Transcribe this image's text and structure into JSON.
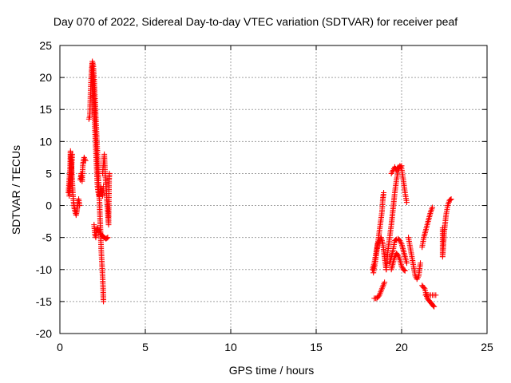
{
  "chart_data": {
    "type": "scatter",
    "title": "Day 070 of 2022, Sidereal Day-to-day VTEC variation (SDTVAR) for receiver peaf",
    "xlabel": "GPS time / hours",
    "ylabel": "SDTVAR / TECUs",
    "xlim": [
      0,
      25
    ],
    "ylim": [
      -20,
      25
    ],
    "xticks": [
      0,
      5,
      10,
      15,
      20,
      25
    ],
    "yticks": [
      -20,
      -15,
      -10,
      -5,
      0,
      5,
      10,
      15,
      20,
      25
    ],
    "grid": true,
    "marker": "+",
    "color": "#ff0000",
    "series": [
      {
        "name": "SDTVAR",
        "segments": [
          [
            [
              0.5,
              2.0
            ],
            [
              0.55,
              4.0
            ],
            [
              0.6,
              6.0
            ],
            [
              0.62,
              8.5
            ],
            [
              0.65,
              7.5
            ],
            [
              0.68,
              6.0
            ],
            [
              0.72,
              4.0
            ],
            [
              0.76,
              2.0
            ],
            [
              0.8,
              0.5
            ],
            [
              0.85,
              -0.5
            ],
            [
              0.9,
              -1.0
            ],
            [
              0.95,
              -1.5
            ],
            [
              1.0,
              -0.8
            ],
            [
              1.05,
              0.5
            ],
            [
              1.1,
              1.0
            ],
            [
              1.15,
              0.0
            ]
          ],
          [
            [
              0.55,
              1.5
            ],
            [
              0.6,
              3.0
            ],
            [
              0.66,
              5.0
            ],
            [
              0.7,
              7.0
            ],
            [
              0.72,
              8.0
            ]
          ],
          [
            [
              1.2,
              4.0
            ],
            [
              1.25,
              5.0
            ],
            [
              1.3,
              3.8
            ],
            [
              1.35,
              6.5
            ],
            [
              1.42,
              7.5
            ],
            [
              1.5,
              7.0
            ]
          ],
          [
            [
              1.7,
              13.5
            ],
            [
              1.75,
              14.0
            ],
            [
              1.8,
              18.0
            ],
            [
              1.85,
              21.0
            ],
            [
              1.9,
              22.5
            ],
            [
              1.95,
              22.0
            ],
            [
              2.0,
              20.0
            ],
            [
              2.05,
              17.0
            ],
            [
              2.1,
              14.0
            ],
            [
              2.15,
              11.0
            ],
            [
              2.2,
              8.0
            ],
            [
              2.25,
              5.0
            ],
            [
              2.28,
              2.5
            ],
            [
              2.32,
              0.5
            ],
            [
              2.35,
              -2.0
            ],
            [
              2.38,
              -4.0
            ],
            [
              2.42,
              -7.0
            ],
            [
              2.46,
              -9.0
            ],
            [
              2.5,
              -11.0
            ],
            [
              2.53,
              -13.0
            ],
            [
              2.55,
              -15.0
            ]
          ],
          [
            [
              1.9,
              22.0
            ],
            [
              1.95,
              19.0
            ],
            [
              2.0,
              16.0
            ],
            [
              2.05,
              12.0
            ],
            [
              2.1,
              9.0
            ],
            [
              2.15,
              6.0
            ],
            [
              2.2,
              3.0
            ],
            [
              2.25,
              2.0
            ],
            [
              2.3,
              1.5
            ],
            [
              2.35,
              2.0
            ],
            [
              2.4,
              2.8
            ],
            [
              2.45,
              2.0
            ],
            [
              2.5,
              1.5
            ],
            [
              2.55,
              3.0
            ]
          ],
          [
            [
              2.0,
              -3.0
            ],
            [
              2.05,
              -4.5
            ],
            [
              2.1,
              -5.0
            ],
            [
              2.15,
              -4.0
            ],
            [
              2.2,
              -3.5
            ],
            [
              2.25,
              -4.0
            ],
            [
              2.3,
              -3.8
            ],
            [
              2.4,
              -4.5
            ],
            [
              2.5,
              -4.8
            ],
            [
              2.6,
              -5.0
            ],
            [
              2.7,
              -5.2
            ],
            [
              2.8,
              -5.0
            ]
          ],
          [
            [
              2.5,
              5.0
            ],
            [
              2.55,
              6.5
            ],
            [
              2.6,
              8.0
            ],
            [
              2.65,
              5.0
            ],
            [
              2.7,
              3.0
            ],
            [
              2.75,
              1.0
            ],
            [
              2.8,
              -1.0
            ],
            [
              2.85,
              -3.0
            ],
            [
              2.88,
              4.0
            ],
            [
              2.9,
              5.0
            ]
          ],
          [
            [
              18.3,
              -10.0
            ],
            [
              18.4,
              -9.0
            ],
            [
              18.5,
              -7.5
            ],
            [
              18.6,
              -6.0
            ],
            [
              18.7,
              -5.5
            ],
            [
              18.8,
              -5.0
            ],
            [
              18.9,
              -6.0
            ],
            [
              19.0,
              -8.0
            ],
            [
              19.1,
              -10.0
            ]
          ],
          [
            [
              18.35,
              -10.5
            ],
            [
              18.45,
              -9.0
            ],
            [
              18.55,
              -7.0
            ],
            [
              18.65,
              -5.0
            ],
            [
              18.75,
              -3.0
            ],
            [
              18.85,
              -1.0
            ],
            [
              18.9,
              1.0
            ],
            [
              18.95,
              2.0
            ]
          ],
          [
            [
              18.4,
              -14.5
            ],
            [
              18.55,
              -14.5
            ],
            [
              18.7,
              -14.0
            ],
            [
              18.85,
              -13.0
            ],
            [
              19.0,
              -12.0
            ]
          ],
          [
            [
              19.1,
              -10.0
            ],
            [
              19.2,
              -7.0
            ],
            [
              19.3,
              -5.0
            ],
            [
              19.4,
              -3.0
            ],
            [
              19.5,
              -0.5
            ],
            [
              19.6,
              2.0
            ],
            [
              19.7,
              4.0
            ],
            [
              19.8,
              5.5
            ],
            [
              19.9,
              6.2
            ],
            [
              20.0,
              5.8
            ],
            [
              20.1,
              4.0
            ],
            [
              20.2,
              2.0
            ],
            [
              20.3,
              0.5
            ]
          ],
          [
            [
              19.4,
              5.0
            ],
            [
              19.5,
              5.5
            ],
            [
              19.6,
              6.0
            ],
            [
              19.7,
              5.5
            ],
            [
              19.8,
              6.0
            ],
            [
              20.0,
              6.2
            ]
          ],
          [
            [
              19.3,
              -9.0
            ],
            [
              19.4,
              -8.0
            ],
            [
              19.5,
              -7.0
            ],
            [
              19.6,
              -5.5
            ],
            [
              19.7,
              -5.3
            ],
            [
              19.8,
              -5.2
            ],
            [
              19.9,
              -5.5
            ],
            [
              20.0,
              -6.0
            ],
            [
              20.1,
              -7.0
            ],
            [
              20.2,
              -8.0
            ],
            [
              20.3,
              -9.0
            ]
          ],
          [
            [
              19.4,
              -10.0
            ],
            [
              19.5,
              -9.0
            ],
            [
              19.6,
              -8.0
            ],
            [
              19.7,
              -7.5
            ],
            [
              19.8,
              -7.8
            ],
            [
              19.9,
              -8.5
            ],
            [
              20.0,
              -9.5
            ],
            [
              20.1,
              -10.0
            ],
            [
              20.2,
              -10.2
            ]
          ],
          [
            [
              20.4,
              -5.0
            ],
            [
              20.5,
              -6.5
            ],
            [
              20.6,
              -8.0
            ],
            [
              20.7,
              -9.5
            ],
            [
              20.8,
              -11.0
            ],
            [
              20.9,
              -11.5
            ],
            [
              21.0,
              -11.0
            ],
            [
              21.1,
              -9.0
            ]
          ],
          [
            [
              21.2,
              -6.5
            ],
            [
              21.3,
              -5.0
            ],
            [
              21.4,
              -4.0
            ],
            [
              21.5,
              -3.0
            ],
            [
              21.6,
              -2.0
            ],
            [
              21.7,
              -1.0
            ],
            [
              21.8,
              -0.3
            ]
          ],
          [
            [
              21.2,
              -12.5
            ],
            [
              21.35,
              -13.0
            ],
            [
              21.5,
              -14.5
            ],
            [
              21.65,
              -15.0
            ],
            [
              21.8,
              -15.5
            ],
            [
              21.9,
              -15.8
            ]
          ],
          [
            [
              21.4,
              -14.0
            ],
            [
              21.6,
              -14.0
            ],
            [
              21.8,
              -14.0
            ],
            [
              22.0,
              -14.0
            ]
          ],
          [
            [
              22.4,
              -3.5
            ],
            [
              22.4,
              -8.0
            ],
            [
              22.5,
              -4.0
            ],
            [
              22.6,
              -1.5
            ],
            [
              22.7,
              0.0
            ],
            [
              22.8,
              0.8
            ],
            [
              22.9,
              1.0
            ]
          ]
        ]
      }
    ]
  }
}
